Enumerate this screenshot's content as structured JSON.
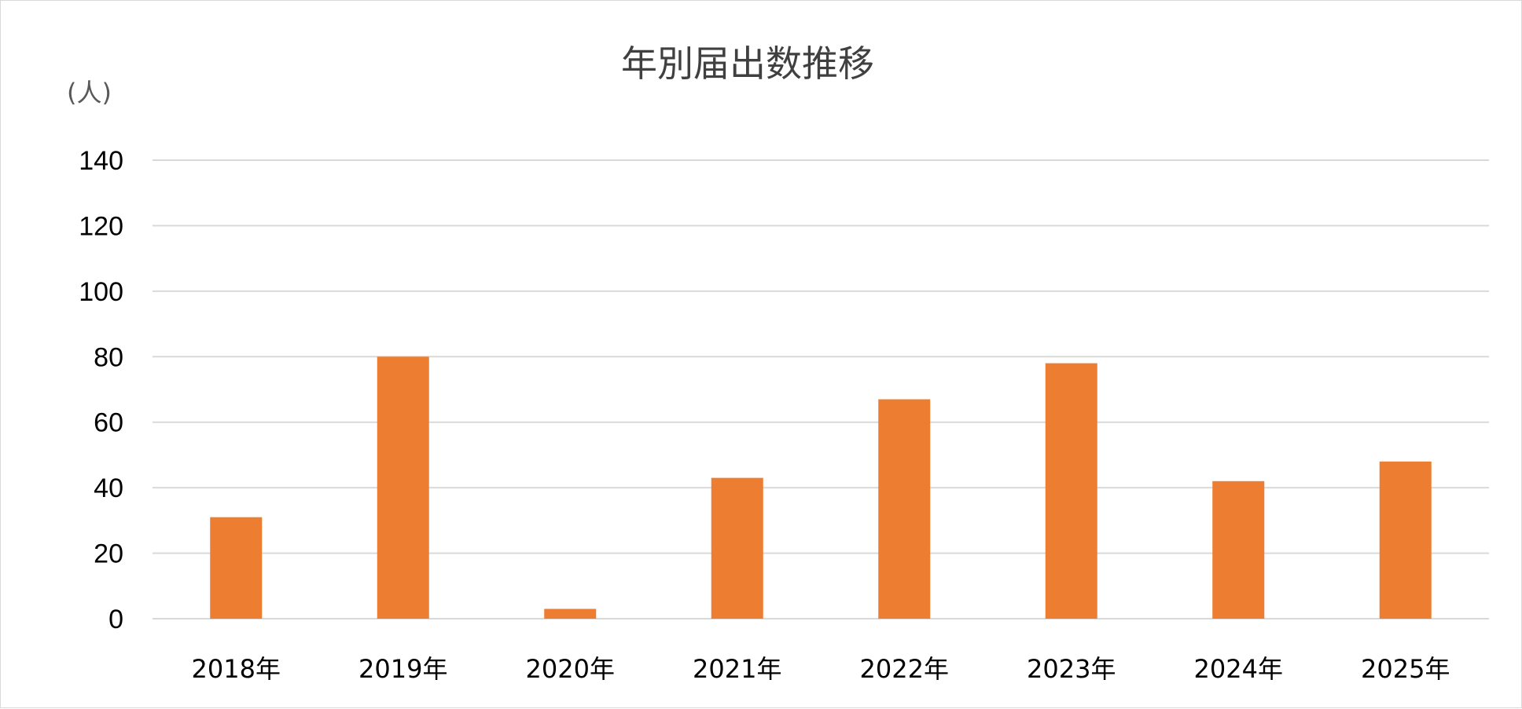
{
  "chart_data": {
    "type": "bar",
    "title": "年別届出数推移",
    "ylabel": "(人)",
    "categories": [
      "2018年",
      "2019年",
      "2020年",
      "2021年",
      "2022年",
      "2023年",
      "2024年",
      "2025年"
    ],
    "values": [
      31,
      80,
      3,
      43,
      67,
      78,
      42,
      48
    ],
    "ylim": [
      0,
      140
    ],
    "yticks": [
      0,
      20,
      40,
      60,
      80,
      100,
      120,
      140
    ],
    "grid": true,
    "legend": "none",
    "bar_color": "#ed7d31",
    "grid_color": "#d9d9d9"
  }
}
